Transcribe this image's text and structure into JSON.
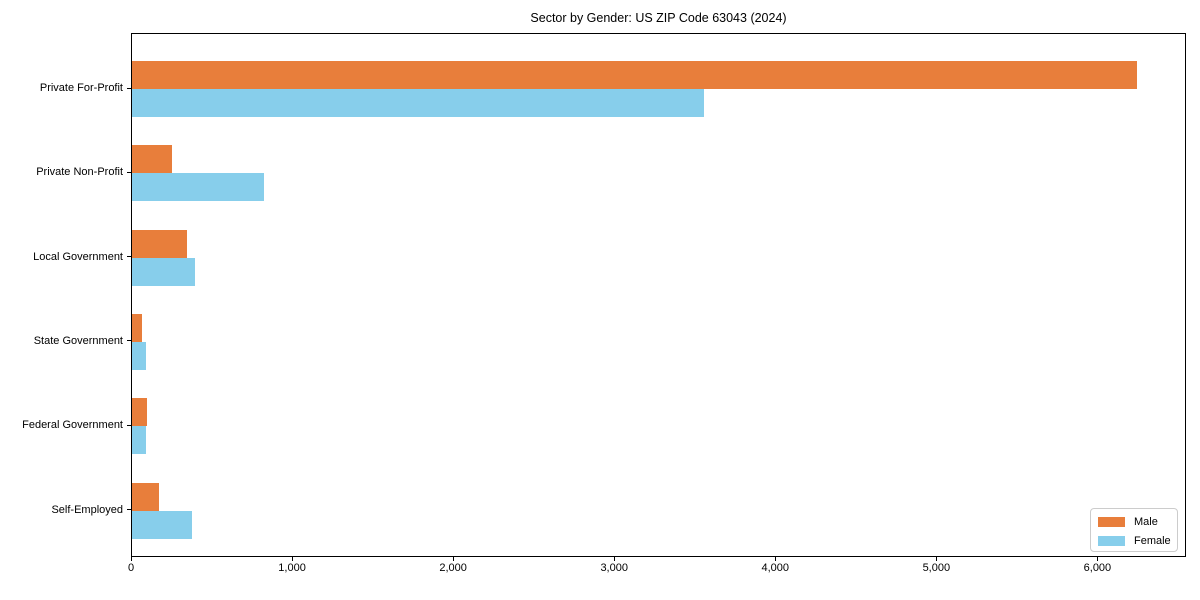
{
  "chart_data": {
    "type": "bar",
    "orientation": "horizontal",
    "title": "Sector by Gender: US ZIP Code 63043 (2024)",
    "categories": [
      "Private For-Profit",
      "Private Non-Profit",
      "Local Government",
      "State Government",
      "Federal Government",
      "Self-Employed"
    ],
    "series": [
      {
        "name": "Male",
        "color": "#e87e3b",
        "values": [
          6240,
          250,
          340,
          60,
          95,
          170
        ]
      },
      {
        "name": "Female",
        "color": "#87ceeb",
        "values": [
          3550,
          820,
          390,
          90,
          85,
          370
        ]
      }
    ],
    "xlabel": "",
    "ylabel": "",
    "xlim": [
      0,
      6550
    ],
    "x_ticks": [
      0,
      1000,
      2000,
      3000,
      4000,
      5000,
      6000
    ],
    "x_tick_labels": [
      "0",
      "1,000",
      "2,000",
      "3,000",
      "4,000",
      "5,000",
      "6,000"
    ],
    "grid": false,
    "legend": {
      "position": "lower right",
      "entries": [
        "Male",
        "Female"
      ]
    }
  }
}
